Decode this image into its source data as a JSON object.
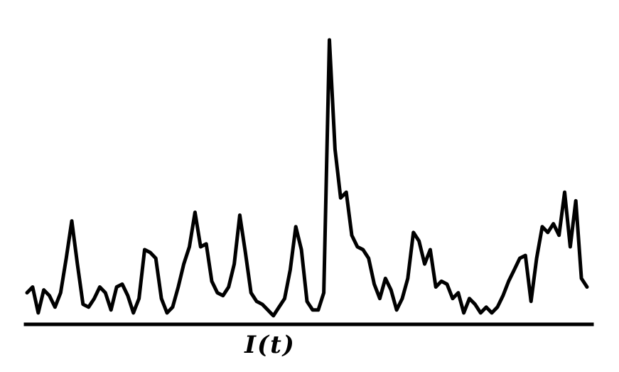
{
  "chart_data": {
    "type": "line",
    "title": "",
    "xlabel": "I(t)",
    "ylabel": "",
    "grid": false,
    "axes_visible": false,
    "xlim": [
      0,
      100
    ],
    "ylim": [
      0,
      100
    ],
    "line_color": "#000000",
    "background_color": "#ffffff",
    "series": [
      {
        "x": [
          0,
          1,
          2,
          3,
          4,
          5,
          6,
          7,
          8,
          9,
          10,
          11,
          12,
          13,
          14,
          15,
          16,
          17,
          18,
          19,
          20,
          21,
          22,
          23,
          24,
          25,
          26,
          27,
          28,
          29,
          30,
          31,
          32,
          33,
          34,
          35,
          36,
          37,
          38,
          39,
          40,
          41,
          42,
          43,
          44,
          45,
          46,
          47,
          48,
          49,
          50,
          51,
          52,
          53,
          54,
          55,
          56,
          57,
          58,
          59,
          60,
          61,
          62,
          63,
          64,
          65,
          66,
          67,
          68,
          69,
          70,
          71,
          72,
          73,
          74,
          75,
          76,
          77,
          78,
          79,
          80,
          81,
          82,
          83,
          84,
          85,
          86,
          87,
          88,
          89,
          90,
          91,
          92,
          93,
          94,
          95,
          96,
          97,
          98,
          99,
          100
        ],
        "values": [
          10,
          12,
          3,
          11,
          9,
          5,
          10,
          22,
          35,
          20,
          6,
          5,
          8,
          12,
          10,
          4,
          12,
          13,
          9,
          3,
          8,
          25,
          24,
          22,
          8,
          3,
          5,
          12,
          20,
          26,
          38,
          26,
          27,
          14,
          10,
          9,
          12,
          20,
          37,
          24,
          10,
          7,
          6,
          4,
          2,
          5,
          8,
          18,
          33,
          25,
          7,
          4,
          4,
          10,
          98,
          60,
          43,
          45,
          30,
          26,
          25,
          22,
          13,
          8,
          15,
          11,
          4,
          8,
          15,
          31,
          28,
          20,
          25,
          12,
          14,
          13,
          8,
          10,
          3,
          8,
          6,
          3,
          5,
          3,
          5,
          9,
          14,
          18,
          22,
          23,
          7,
          22,
          33,
          31,
          34,
          30,
          45,
          26,
          42,
          15,
          12
        ]
      }
    ]
  }
}
